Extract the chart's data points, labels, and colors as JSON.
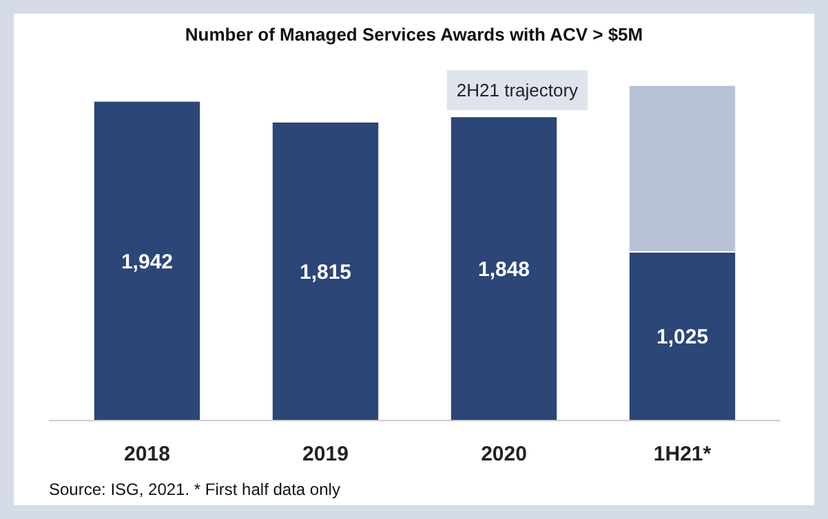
{
  "chart_data": {
    "type": "bar",
    "title": "Number of Managed Services Awards with ACV > $5M",
    "categories": [
      "2018",
      "2019",
      "2020",
      "1H21*"
    ],
    "stacked": true,
    "tick_labels": "x",
    "grid": false,
    "series": [
      {
        "color": "#2b4677",
        "values": [
          1942,
          1815,
          1848,
          1025
        ],
        "value_labels": [
          "1,942",
          "1,815",
          "1,848",
          "1,025"
        ]
      },
      {
        "name": "2H21 trajectory",
        "color": "#b7c2d6",
        "values": [
          null,
          null,
          null,
          1013
        ]
      }
    ],
    "annotations": [
      "Source: ISG, 2021. * First half data only"
    ]
  }
}
